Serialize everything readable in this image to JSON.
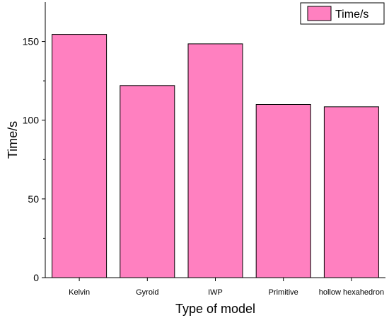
{
  "chart_data": {
    "type": "bar",
    "categories": [
      "Kelvin",
      "Gyroid",
      "IWP",
      "Primitive",
      "hollow hexahedron"
    ],
    "series": [
      {
        "name": "Time/s",
        "values": [
          154.5,
          122,
          148.5,
          110,
          108.5
        ],
        "color": "#ff80c0"
      }
    ],
    "xlabel": "Type of model",
    "ylabel": "Time/s",
    "ylim": [
      0,
      175
    ],
    "yticks": [
      0,
      50,
      100,
      150
    ],
    "grid": false,
    "legend": {
      "position": "top-right"
    },
    "bar_edge_color": "#000000"
  }
}
